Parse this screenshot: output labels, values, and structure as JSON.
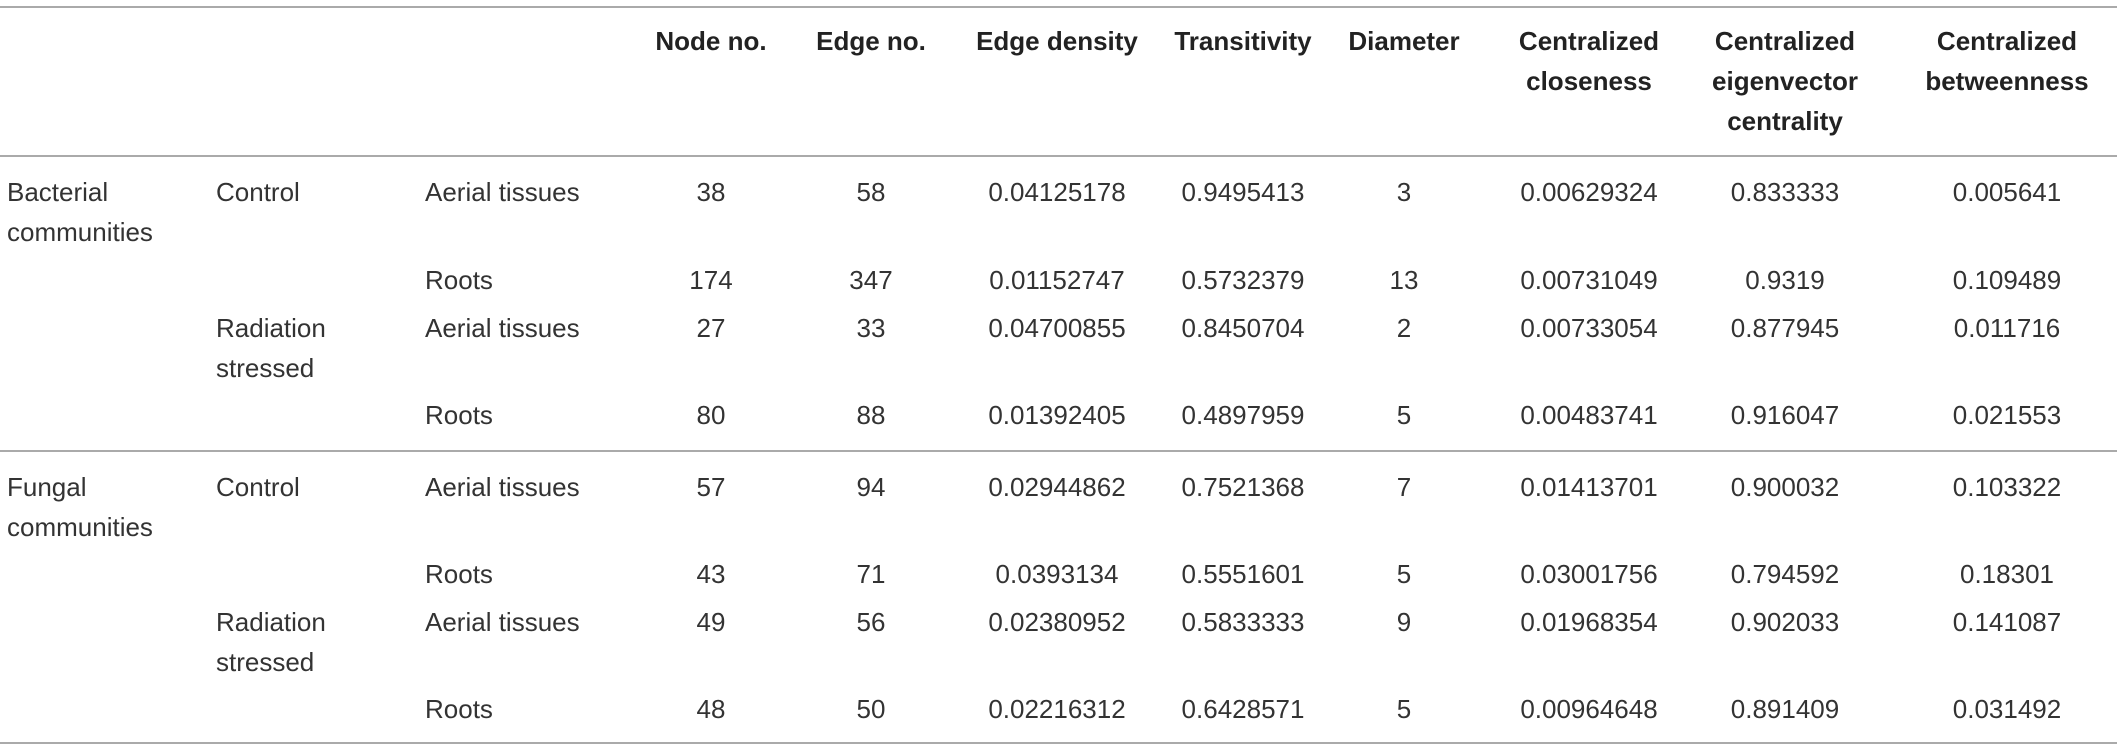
{
  "table": {
    "columns": [
      "Node no.",
      "Edge no.",
      "Edge density",
      "Transitivity",
      "Diameter",
      "Centralized closeness",
      "Centralized eigenvector centrality",
      "Centralized betweenness"
    ],
    "groups": [
      {
        "label": "Bacterial communities",
        "conditions": [
          {
            "label": "Control",
            "rows": [
              {
                "tissue": "Aerial tissues",
                "values": [
                  "38",
                  "58",
                  "0.04125178",
                  "0.9495413",
                  "3",
                  "0.00629324",
                  "0.833333",
                  "0.005641"
                ]
              },
              {
                "tissue": "Roots",
                "values": [
                  "174",
                  "347",
                  "0.01152747",
                  "0.5732379",
                  "13",
                  "0.00731049",
                  "0.9319",
                  "0.109489"
                ]
              }
            ]
          },
          {
            "label": "Radiation stressed",
            "rows": [
              {
                "tissue": "Aerial tissues",
                "values": [
                  "27",
                  "33",
                  "0.04700855",
                  "0.8450704",
                  "2",
                  "0.00733054",
                  "0.877945",
                  "0.011716"
                ]
              },
              {
                "tissue": "Roots",
                "values": [
                  "80",
                  "88",
                  "0.01392405",
                  "0.4897959",
                  "5",
                  "0.00483741",
                  "0.916047",
                  "0.021553"
                ]
              }
            ]
          }
        ]
      },
      {
        "label": "Fungal communities",
        "conditions": [
          {
            "label": "Control",
            "rows": [
              {
                "tissue": "Aerial tissues",
                "values": [
                  "57",
                  "94",
                  "0.02944862",
                  "0.7521368",
                  "7",
                  "0.01413701",
                  "0.900032",
                  "0.103322"
                ]
              },
              {
                "tissue": "Roots",
                "values": [
                  "43",
                  "71",
                  "0.0393134",
                  "0.5551601",
                  "5",
                  "0.03001756",
                  "0.794592",
                  "0.18301"
                ]
              }
            ]
          },
          {
            "label": "Radiation stressed",
            "rows": [
              {
                "tissue": "Aerial tissues",
                "values": [
                  "49",
                  "56",
                  "0.02380952",
                  "0.5833333",
                  "9",
                  "0.01968354",
                  "0.902033",
                  "0.141087"
                ]
              },
              {
                "tissue": "Roots",
                "values": [
                  "48",
                  "50",
                  "0.02216312",
                  "0.6428571",
                  "5",
                  "0.00964648",
                  "0.891409",
                  "0.031492"
                ]
              }
            ]
          }
        ]
      }
    ]
  }
}
